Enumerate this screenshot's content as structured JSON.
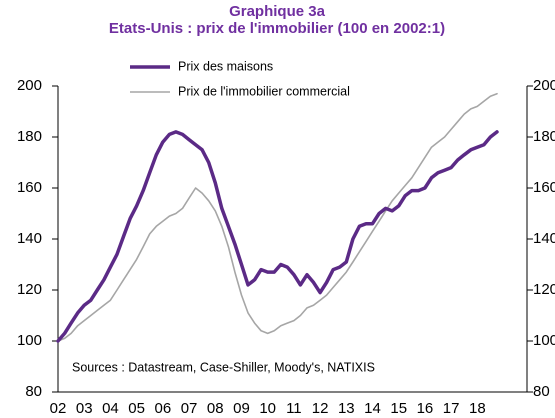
{
  "chart_data": {
    "type": "line",
    "title": "Graphique 3a",
    "subtitle": "Etats-Unis : prix de l'immobilier (100 en 2002:1)",
    "annotation": "Sources : Datastream, Case-Shiller, Moody's, NATIXIS",
    "categories": [
      "02",
      null,
      null,
      null,
      "03",
      null,
      null,
      null,
      "04",
      null,
      null,
      null,
      "05",
      null,
      null,
      null,
      "06",
      null,
      null,
      null,
      "07",
      null,
      null,
      null,
      "08",
      null,
      null,
      null,
      "09",
      null,
      null,
      null,
      "10",
      null,
      null,
      null,
      "11",
      null,
      null,
      null,
      "12",
      null,
      null,
      null,
      "13",
      null,
      null,
      null,
      "14",
      null,
      null,
      null,
      "15",
      null,
      null,
      null,
      "16",
      null,
      null,
      null,
      "17",
      null,
      null,
      null,
      "18",
      null,
      null,
      null
    ],
    "series": [
      {
        "name": "Prix des maisons",
        "color": "#5b2a86",
        "values": [
          100,
          103,
          107,
          111,
          114,
          116,
          120,
          124,
          129,
          134,
          141,
          148,
          153,
          159,
          166,
          173,
          178,
          181,
          182,
          181,
          179,
          177,
          175,
          170,
          162,
          152,
          145,
          138,
          130,
          122,
          124,
          128,
          127,
          127,
          130,
          129,
          126,
          122,
          126,
          123,
          119,
          123,
          128,
          129,
          131,
          140,
          145,
          146,
          146,
          150,
          152,
          151,
          153,
          157,
          159,
          159,
          160,
          164,
          166,
          167,
          168,
          171,
          173,
          175,
          176,
          177,
          180,
          182
        ]
      },
      {
        "name": "Prix de l'immobilier commercial",
        "color": "#a6a6a6",
        "values": [
          100,
          101,
          103,
          106,
          108,
          110,
          112,
          114,
          116,
          120,
          124,
          128,
          132,
          137,
          142,
          145,
          147,
          149,
          150,
          152,
          156,
          160,
          158,
          155,
          151,
          145,
          137,
          127,
          118,
          111,
          107,
          104,
          103,
          104,
          106,
          107,
          108,
          110,
          113,
          114,
          116,
          118,
          121,
          124,
          127,
          131,
          135,
          139,
          143,
          147,
          151,
          155,
          158,
          161,
          164,
          168,
          172,
          176,
          178,
          180,
          183,
          186,
          189,
          191,
          192,
          194,
          196,
          197
        ]
      }
    ],
    "ylim": [
      80,
      200
    ],
    "yticks": [
      80,
      100,
      120,
      140,
      160,
      180,
      200
    ],
    "y2lim": [
      80,
      200
    ],
    "y2ticks": [
      80,
      100,
      120,
      140,
      160,
      180,
      200
    ],
    "grid": false
  }
}
